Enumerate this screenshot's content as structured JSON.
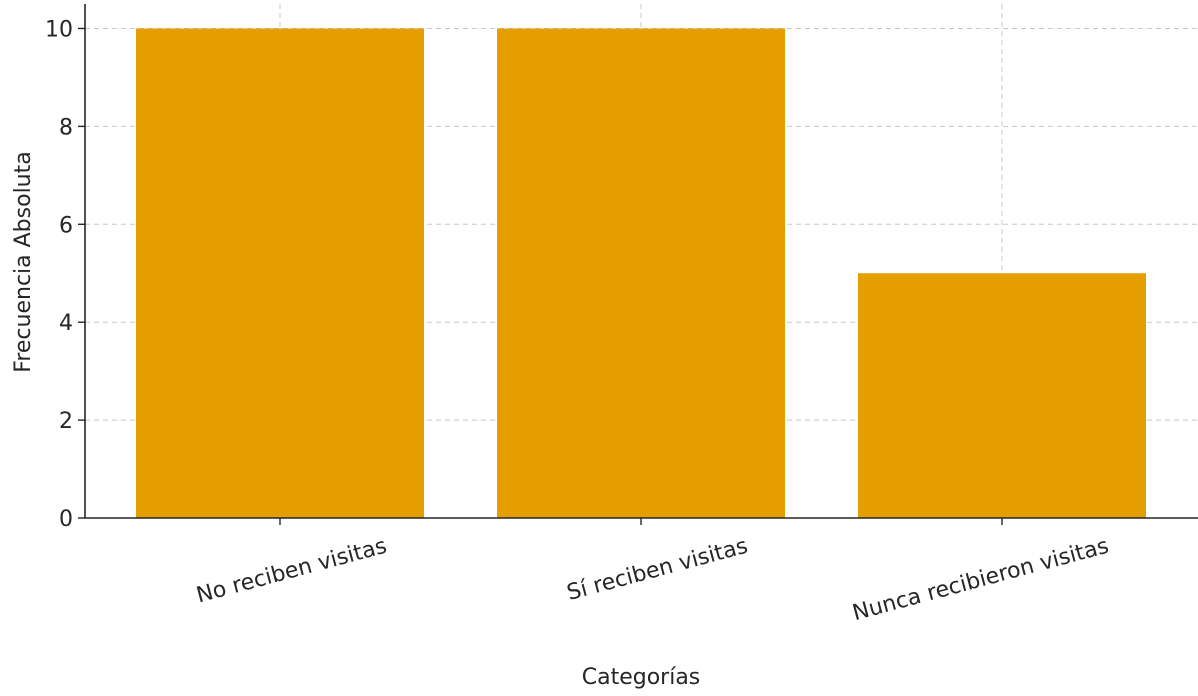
{
  "chart_data": {
    "type": "bar",
    "categories": [
      "No reciben visitas",
      "Sí reciben visitas",
      "Nunca recibieron visitas"
    ],
    "values": [
      10,
      10,
      5
    ],
    "title": "",
    "xlabel": "Categorías",
    "ylabel": "Frecuencia Absoluta",
    "ylim": [
      0,
      10.5
    ],
    "yticks": [
      0,
      2,
      4,
      6,
      8,
      10
    ],
    "grid": true,
    "legend": "none",
    "bar_color": "#E49E00",
    "grid_color": "#c8c8c8",
    "axis_color": "#262626"
  }
}
